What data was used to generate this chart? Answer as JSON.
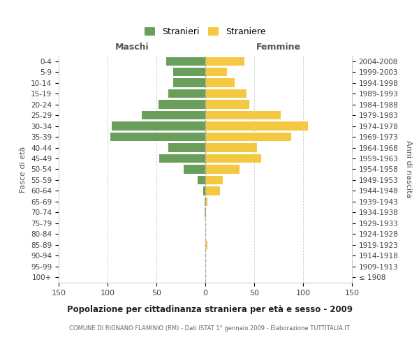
{
  "age_groups": [
    "100+",
    "95-99",
    "90-94",
    "85-89",
    "80-84",
    "75-79",
    "70-74",
    "65-69",
    "60-64",
    "55-59",
    "50-54",
    "45-49",
    "40-44",
    "35-39",
    "30-34",
    "25-29",
    "20-24",
    "15-19",
    "10-14",
    "5-9",
    "0-4"
  ],
  "birth_years": [
    "≤ 1908",
    "1909-1913",
    "1914-1918",
    "1919-1923",
    "1924-1928",
    "1929-1933",
    "1934-1938",
    "1939-1943",
    "1944-1948",
    "1949-1953",
    "1954-1958",
    "1959-1963",
    "1964-1968",
    "1969-1973",
    "1974-1978",
    "1979-1983",
    "1984-1988",
    "1989-1993",
    "1994-1998",
    "1999-2003",
    "2004-2008"
  ],
  "maschi": [
    0,
    0,
    0,
    0,
    0,
    0,
    1,
    1,
    2,
    8,
    22,
    47,
    38,
    97,
    96,
    65,
    48,
    38,
    33,
    33,
    40
  ],
  "femmine": [
    0,
    0,
    0,
    2,
    0,
    0,
    1,
    2,
    15,
    18,
    35,
    57,
    53,
    88,
    105,
    77,
    45,
    42,
    30,
    22,
    40
  ],
  "maschi_color": "#6a9e5b",
  "femmine_color": "#f5c842",
  "bg_color": "#ffffff",
  "grid_color": "#cccccc",
  "title": "Popolazione per cittadinanza straniera per età e sesso - 2009",
  "subtitle": "COMUNE DI RIGNANO FLAMINIO (RM) - Dati ISTAT 1° gennaio 2009 - Elaborazione TUTTITALIA.IT",
  "legend_maschi": "Stranieri",
  "legend_femmine": "Straniere",
  "label_maschi": "Maschi",
  "label_femmine": "Femmine",
  "ylabel_left": "Fasce di età",
  "ylabel_right": "Anni di nascita",
  "xlim": 150
}
